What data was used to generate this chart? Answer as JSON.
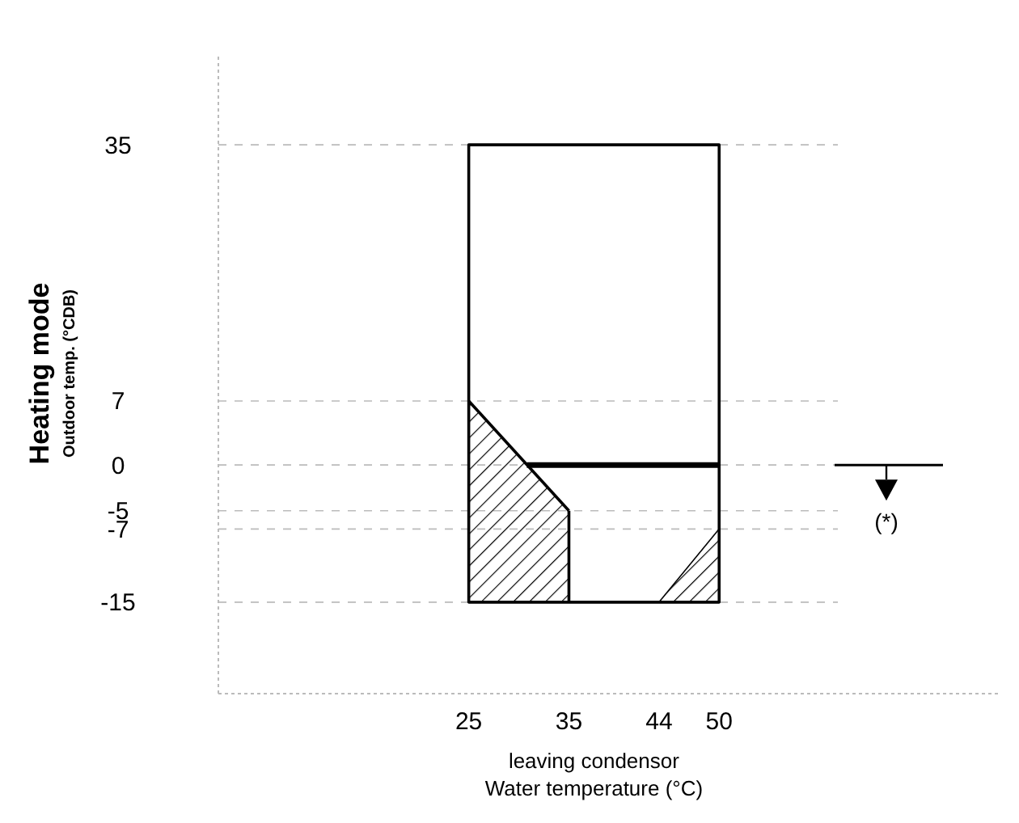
{
  "chart_data": {
    "type": "line",
    "xlabel": "leaving condensor\nWater temperature (°C)",
    "ylabel": "Heating mode\nOutdoor temp. (°CDB)",
    "xlim": [
      0,
      78
    ],
    "ylim": [
      -25,
      45
    ],
    "xticks": [
      25,
      35,
      44,
      50
    ],
    "yticks": [
      35,
      7,
      0,
      -5,
      -7,
      -15
    ],
    "grid": "y",
    "marker": "none",
    "line_style": "solid",
    "series": [
      {
        "color": "#000000",
        "x": [
          35,
          35,
          25,
          25,
          50,
          50,
          35
        ],
        "values": [
          -5,
          -15,
          -15,
          35,
          35,
          -15,
          -15
        ]
      },
      {
        "color": "#000000",
        "x": [
          25,
          35
        ],
        "values": [
          7,
          -5
        ],
        "lower": [
          -15,
          -15
        ],
        "upper": [
          7,
          -5
        ]
      },
      {
        "color": "#000000",
        "x": [
          30.8,
          50
        ],
        "values": [
          0,
          0
        ]
      },
      {
        "color": "#000000",
        "x": [
          44,
          50
        ],
        "values": [
          -15,
          -7
        ],
        "lower": [
          -15,
          -15
        ],
        "upper": [
          -15,
          -7
        ]
      }
    ],
    "annotations": [
      "(*)"
    ]
  }
}
